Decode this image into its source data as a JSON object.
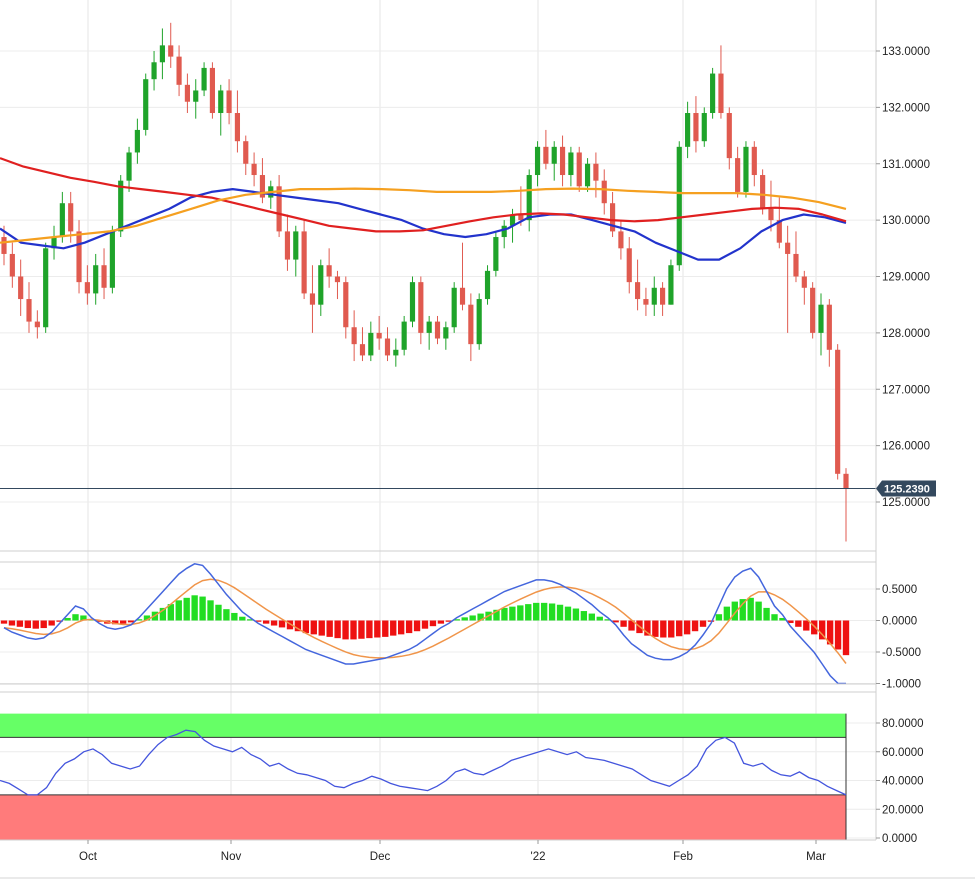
{
  "chart_data": [
    {
      "type": "candlestick",
      "title": "",
      "ylim": [
        124.2,
        134.0
      ],
      "y_ticks": [
        "133.0000",
        "132.0000",
        "131.0000",
        "130.0000",
        "129.0000",
        "128.0000",
        "127.0000",
        "126.0000",
        "125.0000"
      ],
      "y_tick_values": [
        133,
        132,
        131,
        130,
        129,
        128,
        127,
        126,
        125
      ],
      "x_ticks": [
        "Oct",
        "Nov",
        "Dec",
        "'22",
        "Feb",
        "Mar"
      ],
      "last_price": 125.239,
      "last_price_label": "125.2390",
      "colors": {
        "up": "#1fa32a",
        "down": "#e05a4f",
        "ma_fast": "#2233cc",
        "ma_mid": "#e02020",
        "ma_slow": "#f5a020",
        "last_line": "#34495e"
      },
      "candles_ohlc": [
        [
          129.7,
          129.9,
          129.2,
          129.4
        ],
        [
          129.4,
          129.6,
          128.8,
          129.0
        ],
        [
          129.0,
          129.3,
          128.3,
          128.6
        ],
        [
          128.6,
          128.9,
          128.0,
          128.2
        ],
        [
          128.2,
          128.4,
          127.9,
          128.1
        ],
        [
          128.1,
          129.6,
          128.0,
          129.5
        ],
        [
          129.5,
          129.9,
          129.3,
          129.7
        ],
        [
          129.7,
          130.5,
          129.6,
          130.3
        ],
        [
          130.3,
          130.5,
          129.6,
          129.8
        ],
        [
          129.8,
          130.0,
          128.7,
          128.9
        ],
        [
          128.9,
          129.2,
          128.5,
          128.7
        ],
        [
          128.7,
          129.4,
          128.5,
          129.2
        ],
        [
          129.2,
          129.5,
          128.6,
          128.8
        ],
        [
          128.8,
          129.9,
          128.7,
          129.8
        ],
        [
          129.8,
          130.8,
          129.7,
          130.7
        ],
        [
          130.7,
          131.3,
          130.5,
          131.2
        ],
        [
          131.2,
          131.8,
          131.0,
          131.6
        ],
        [
          131.6,
          132.6,
          131.5,
          132.5
        ],
        [
          132.5,
          133.0,
          132.3,
          132.8
        ],
        [
          132.8,
          133.4,
          132.5,
          133.1
        ],
        [
          133.1,
          133.5,
          132.7,
          132.9
        ],
        [
          132.9,
          133.1,
          132.2,
          132.4
        ],
        [
          132.4,
          132.6,
          131.9,
          132.1
        ],
        [
          132.1,
          132.5,
          131.8,
          132.3
        ],
        [
          132.3,
          132.8,
          132.2,
          132.7
        ],
        [
          132.7,
          132.8,
          131.8,
          131.9
        ],
        [
          131.9,
          132.4,
          131.5,
          132.3
        ],
        [
          132.3,
          132.5,
          131.7,
          131.9
        ],
        [
          131.9,
          132.3,
          131.2,
          131.4
        ],
        [
          131.4,
          131.5,
          130.8,
          131.0
        ],
        [
          131.0,
          131.2,
          130.6,
          130.8
        ],
        [
          130.8,
          131.1,
          130.3,
          130.4
        ],
        [
          130.4,
          130.7,
          130.2,
          130.6
        ],
        [
          130.6,
          130.8,
          129.7,
          129.8
        ],
        [
          129.8,
          130.1,
          129.1,
          129.3
        ],
        [
          129.3,
          129.9,
          129.0,
          129.8
        ],
        [
          129.8,
          130.0,
          128.6,
          128.7
        ],
        [
          128.7,
          129.2,
          128.0,
          128.5
        ],
        [
          128.5,
          129.3,
          128.3,
          129.2
        ],
        [
          129.2,
          129.5,
          128.8,
          129.0
        ],
        [
          129.0,
          129.1,
          128.6,
          128.9
        ],
        [
          128.9,
          129.0,
          127.9,
          128.1
        ],
        [
          128.1,
          128.4,
          127.5,
          127.8
        ],
        [
          127.8,
          128.1,
          127.5,
          127.6
        ],
        [
          127.6,
          128.2,
          127.5,
          128.0
        ],
        [
          128.0,
          128.3,
          127.7,
          127.9
        ],
        [
          127.9,
          128.1,
          127.5,
          127.6
        ],
        [
          127.6,
          127.9,
          127.4,
          127.7
        ],
        [
          127.7,
          128.3,
          127.6,
          128.2
        ],
        [
          128.2,
          129.0,
          128.1,
          128.9
        ],
        [
          128.9,
          129.0,
          127.8,
          128.0
        ],
        [
          128.0,
          128.3,
          127.7,
          128.2
        ],
        [
          128.2,
          128.3,
          127.8,
          127.9
        ],
        [
          127.9,
          128.2,
          127.7,
          128.1
        ],
        [
          128.1,
          128.9,
          128.0,
          128.8
        ],
        [
          128.8,
          129.6,
          128.4,
          128.5
        ],
        [
          128.5,
          128.7,
          127.5,
          127.8
        ],
        [
          127.8,
          128.7,
          127.7,
          128.6
        ],
        [
          128.6,
          129.2,
          128.5,
          129.1
        ],
        [
          129.1,
          129.8,
          129.0,
          129.7
        ],
        [
          129.7,
          130.0,
          129.5,
          129.9
        ],
        [
          129.9,
          130.2,
          129.6,
          130.1
        ],
        [
          130.1,
          130.6,
          129.9,
          130.0
        ],
        [
          130.0,
          130.9,
          129.8,
          130.8
        ],
        [
          130.8,
          131.4,
          130.6,
          131.3
        ],
        [
          131.3,
          131.6,
          130.9,
          131.0
        ],
        [
          131.0,
          131.4,
          130.7,
          131.3
        ],
        [
          131.3,
          131.5,
          130.6,
          130.8
        ],
        [
          130.8,
          131.3,
          130.6,
          131.2
        ],
        [
          131.2,
          131.3,
          130.5,
          130.6
        ],
        [
          130.6,
          131.1,
          130.5,
          131.0
        ],
        [
          131.0,
          131.2,
          130.4,
          130.7
        ],
        [
          130.7,
          130.9,
          130.1,
          130.3
        ],
        [
          130.3,
          130.5,
          129.7,
          129.8
        ],
        [
          129.8,
          130.0,
          129.3,
          129.5
        ],
        [
          129.5,
          129.7,
          128.7,
          128.9
        ],
        [
          128.9,
          129.3,
          128.4,
          128.6
        ],
        [
          128.6,
          128.8,
          128.3,
          128.5
        ],
        [
          128.5,
          129.0,
          128.3,
          128.8
        ],
        [
          128.8,
          128.9,
          128.3,
          128.5
        ],
        [
          128.5,
          129.3,
          128.5,
          129.2
        ],
        [
          129.2,
          131.4,
          129.1,
          131.3
        ],
        [
          131.3,
          132.1,
          131.1,
          131.9
        ],
        [
          131.9,
          132.2,
          131.2,
          131.4
        ],
        [
          131.4,
          132.0,
          131.3,
          131.9
        ],
        [
          131.9,
          132.7,
          131.8,
          132.6
        ],
        [
          132.6,
          133.1,
          131.8,
          131.9
        ],
        [
          131.9,
          132.0,
          130.9,
          131.1
        ],
        [
          131.1,
          131.3,
          130.4,
          130.5
        ],
        [
          130.5,
          131.4,
          130.4,
          131.3
        ],
        [
          131.3,
          131.4,
          130.6,
          130.8
        ],
        [
          130.8,
          130.9,
          130.1,
          130.2
        ],
        [
          130.2,
          130.7,
          129.8,
          130.0
        ],
        [
          130.0,
          130.4,
          129.5,
          129.6
        ],
        [
          129.6,
          129.9,
          128.0,
          129.4
        ],
        [
          129.4,
          129.8,
          128.9,
          129.0
        ],
        [
          129.0,
          129.1,
          128.5,
          128.8
        ],
        [
          128.8,
          128.9,
          127.9,
          128.0
        ],
        [
          128.0,
          128.7,
          127.6,
          128.5
        ],
        [
          128.5,
          128.6,
          127.4,
          127.7
        ],
        [
          127.7,
          127.8,
          125.4,
          125.5
        ],
        [
          125.5,
          125.6,
          124.3,
          125.239
        ]
      ],
      "series": [
        {
          "name": "",
          "color": "#2233cc",
          "values": [
            129.85,
            129.6,
            129.55,
            129.5,
            129.6,
            129.75,
            129.9,
            130.05,
            130.2,
            130.4,
            130.5,
            130.55,
            130.5,
            130.45,
            130.4,
            130.35,
            130.3,
            130.2,
            130.1,
            130.0,
            129.85,
            129.75,
            129.7,
            129.75,
            129.85,
            130.05,
            130.1,
            130.1,
            130.0,
            129.9,
            129.8,
            129.6,
            129.45,
            129.3,
            129.3,
            129.5,
            129.8,
            130.0,
            130.1,
            130.05,
            129.95
          ]
        },
        {
          "name": "",
          "color": "#e02020",
          "values": [
            131.1,
            130.95,
            130.85,
            130.75,
            130.68,
            130.6,
            130.55,
            130.5,
            130.45,
            130.4,
            130.3,
            130.2,
            130.1,
            130.0,
            129.9,
            129.85,
            129.8,
            129.8,
            129.82,
            129.9,
            129.98,
            130.05,
            130.1,
            130.12,
            130.1,
            130.05,
            130.0,
            129.98,
            130.0,
            130.05,
            130.1,
            130.15,
            130.2,
            130.22,
            130.2,
            130.1,
            129.98
          ]
        },
        {
          "name": "",
          "color": "#f5a020",
          "values": [
            129.6,
            129.65,
            129.7,
            129.75,
            129.8,
            129.9,
            130.05,
            130.2,
            130.35,
            130.45,
            130.5,
            130.55,
            130.55,
            130.56,
            130.55,
            130.53,
            130.5,
            130.5,
            130.5,
            130.52,
            130.55,
            130.56,
            130.55,
            130.52,
            130.5,
            130.48,
            130.48,
            130.48,
            130.45,
            130.4,
            130.32,
            130.2
          ]
        }
      ]
    },
    {
      "type": "macd",
      "ylim": [
        -1.0,
        0.9
      ],
      "y_ticks": [
        "0.5000",
        "0.0000",
        "-0.5000",
        "-1.0000"
      ],
      "y_tick_values": [
        0.5,
        0.0,
        -0.5,
        -1.0
      ],
      "colors": {
        "hist_pos": "#22dd22",
        "hist_neg": "#ee1111",
        "macd": "#4466dd",
        "signal": "#f0954a"
      },
      "histogram": [
        -0.05,
        -0.08,
        -0.1,
        -0.12,
        -0.13,
        -0.12,
        -0.08,
        -0.02,
        0.04,
        0.1,
        0.08,
        0.02,
        -0.02,
        -0.05,
        -0.06,
        -0.05,
        -0.03,
        0.02,
        0.08,
        0.14,
        0.2,
        0.26,
        0.32,
        0.36,
        0.4,
        0.38,
        0.32,
        0.25,
        0.18,
        0.12,
        0.06,
        0.02,
        -0.02,
        -0.05,
        -0.08,
        -0.11,
        -0.14,
        -0.17,
        -0.2,
        -0.22,
        -0.24,
        -0.26,
        -0.28,
        -0.3,
        -0.3,
        -0.29,
        -0.28,
        -0.27,
        -0.26,
        -0.24,
        -0.22,
        -0.2,
        -0.17,
        -0.13,
        -0.09,
        -0.05,
        -0.02,
        0.02,
        0.05,
        0.08,
        0.11,
        0.14,
        0.17,
        0.2,
        0.22,
        0.24,
        0.26,
        0.28,
        0.28,
        0.27,
        0.25,
        0.22,
        0.19,
        0.15,
        0.11,
        0.06,
        0.02,
        -0.03,
        -0.1,
        -0.16,
        -0.2,
        -0.24,
        -0.26,
        -0.27,
        -0.27,
        -0.25,
        -0.22,
        -0.17,
        -0.1,
        -0.02,
        0.1,
        0.22,
        0.3,
        0.34,
        0.36,
        0.3,
        0.2,
        0.1,
        0.04,
        -0.04,
        -0.1,
        -0.16,
        -0.22,
        -0.3,
        -0.38,
        -0.46,
        -0.55
      ]
    },
    {
      "type": "line",
      "ylim": [
        0,
        90
      ],
      "y_ticks": [
        "80.0000",
        "60.0000",
        "40.0000",
        "20.0000",
        "0.0000"
      ],
      "y_tick_values": [
        80,
        60,
        40,
        20,
        0
      ],
      "colors": {
        "line": "#4455dd",
        "overbought": "#66ff66",
        "oversold": "#ff7b7b"
      },
      "overbought_band": [
        70,
        100
      ],
      "oversold_band": [
        0,
        30
      ],
      "values": [
        40,
        38,
        34,
        30,
        30,
        35,
        45,
        52,
        55,
        60,
        62,
        58,
        52,
        50,
        48,
        50,
        58,
        65,
        70,
        72,
        75,
        74,
        68,
        64,
        62,
        60,
        63,
        58,
        55,
        50,
        52,
        48,
        45,
        44,
        42,
        40,
        36,
        35,
        38,
        40,
        43,
        41,
        38,
        36,
        35,
        34,
        33,
        36,
        40,
        46,
        48,
        45,
        44,
        47,
        50,
        54,
        56,
        58,
        60,
        62,
        60,
        58,
        60,
        56,
        55,
        54,
        52,
        50,
        48,
        44,
        40,
        38,
        36,
        40,
        44,
        50,
        62,
        68,
        70,
        66,
        52,
        50,
        52,
        47,
        44,
        43,
        46,
        42,
        40,
        36,
        33,
        30
      ]
    }
  ]
}
